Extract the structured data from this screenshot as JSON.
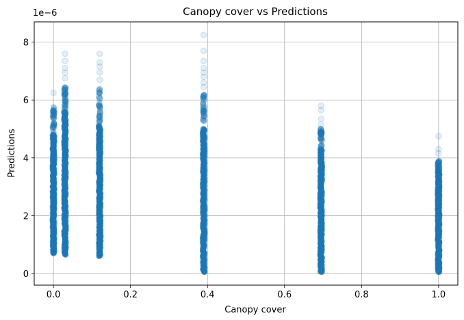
{
  "chart_data": {
    "type": "scatter",
    "title": "Canopy cover vs Predictions",
    "xlabel": "Canopy cover",
    "ylabel": "Predictions",
    "y_offset_label": "1e−6",
    "y_scale": 1e-06,
    "xlim": [
      -0.05,
      1.05
    ],
    "ylim": [
      -0.4,
      8.7
    ],
    "xticks": [
      0.0,
      0.2,
      0.4,
      0.6,
      0.8,
      1.0
    ],
    "xtick_labels": [
      "0.0",
      "0.2",
      "0.4",
      "0.6",
      "0.8",
      "1.0"
    ],
    "yticks": [
      0,
      2,
      4,
      6,
      8
    ],
    "ytick_labels": [
      "0",
      "2",
      "4",
      "6",
      "8"
    ],
    "grid": true,
    "marker_color": "#1f77b4",
    "marker_alpha": 0.12,
    "series": [
      {
        "clusters": [
          {
            "x": 0.0,
            "y_min": 0.7,
            "y_dense_max": 4.8,
            "y_max": 5.8,
            "outliers": [
              6.25,
              5.75,
              5.5
            ]
          },
          {
            "x": 0.03,
            "y_min": 0.65,
            "y_dense_max": 5.6,
            "y_max": 6.5,
            "outliers": [
              7.6,
              7.35,
              7.1,
              6.95,
              6.75
            ]
          },
          {
            "x": 0.12,
            "y_min": 0.6,
            "y_dense_max": 5.1,
            "y_max": 6.4,
            "outliers": [
              7.6,
              7.3,
              7.15,
              6.95,
              6.7
            ]
          },
          {
            "x": 0.39,
            "y_min": 0.05,
            "y_dense_max": 5.0,
            "y_max": 6.2,
            "outliers": [
              8.25,
              7.7,
              7.35,
              7.1,
              6.95,
              6.8,
              6.6,
              6.45
            ]
          },
          {
            "x": 0.695,
            "y_min": 0.05,
            "y_dense_max": 4.3,
            "y_max": 5.0,
            "outliers": [
              5.8,
              5.65,
              5.35,
              5.15
            ]
          },
          {
            "x": 1.0,
            "y_min": 0.05,
            "y_dense_max": 3.5,
            "y_max": 3.9,
            "outliers": [
              4.75,
              4.3,
              4.15
            ]
          }
        ]
      }
    ]
  }
}
